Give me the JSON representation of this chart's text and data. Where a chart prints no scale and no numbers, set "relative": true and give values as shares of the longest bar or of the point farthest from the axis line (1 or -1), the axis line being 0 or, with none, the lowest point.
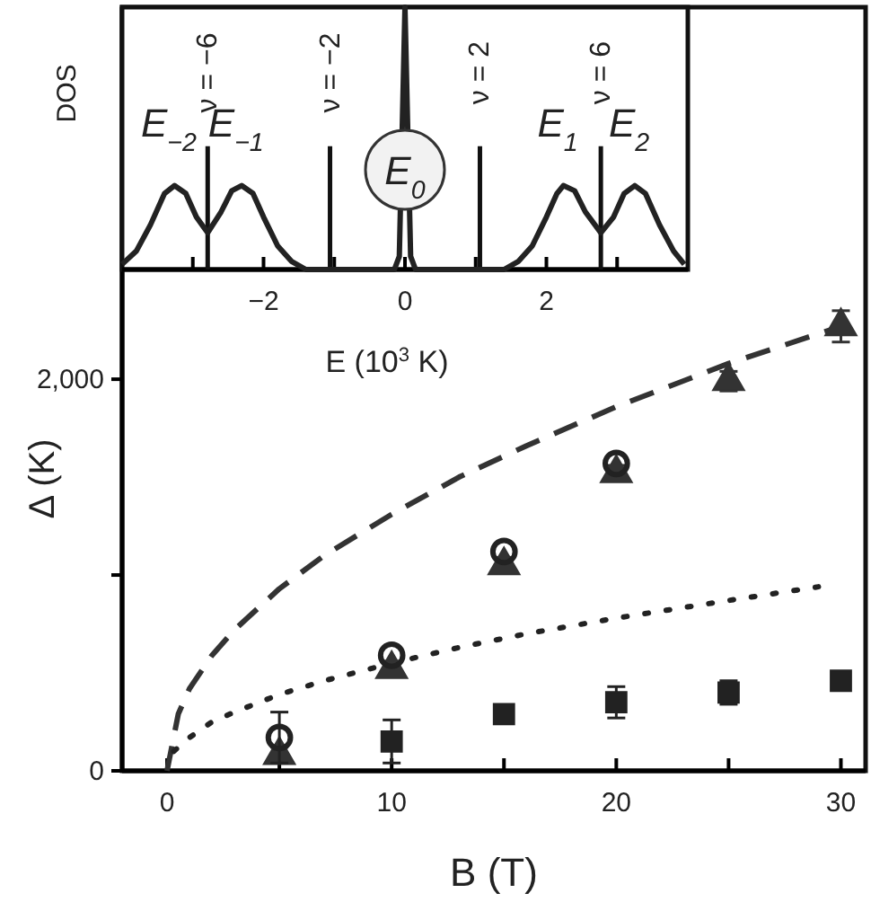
{
  "chart_data": [
    {
      "type": "scatter",
      "xlabel": "B (T)",
      "ylabel": "Δ (K)",
      "xlim": [
        -2,
        31.1
      ],
      "ylim": [
        0,
        3900
      ],
      "xticks": [
        0,
        {
          "value": 5,
          "label": null
        },
        10,
        {
          "value": 15,
          "label": null
        },
        20,
        {
          "value": 25,
          "label": null
        },
        30
      ],
      "yticks": [
        0,
        {
          "value": 1000,
          "label": null
        },
        {
          "value": 2000,
          "label": "2,000"
        }
      ],
      "series": [
        {
          "type": "line",
          "line_style": "dashed",
          "color": "#333333",
          "x": [
            0,
            0.5,
            1,
            2,
            3,
            5,
            7,
            10,
            13,
            16,
            20,
            25,
            30
          ],
          "values": [
            0,
            290,
            420,
            590,
            720,
            930,
            1100,
            1310,
            1500,
            1660,
            1860,
            2080,
            2270
          ]
        },
        {
          "type": "line",
          "line_style": "dotted",
          "color": "#222222",
          "x": [
            0.3,
            1,
            2,
            3,
            5,
            7,
            10,
            13,
            16,
            20,
            25,
            29
          ],
          "values": [
            100,
            170,
            250,
            300,
            390,
            460,
            550,
            630,
            700,
            780,
            870,
            940
          ]
        },
        {
          "marker": "triangle",
          "color": "#333333",
          "x": [
            5,
            10,
            15,
            20,
            25,
            30
          ],
          "values": [
            80,
            520,
            1050,
            1520,
            1990,
            2270
          ],
          "errors": [
            40,
            40,
            40,
            40,
            50,
            80
          ]
        },
        {
          "marker": "circle",
          "color": "#222222",
          "x": [
            5,
            10,
            15,
            20
          ],
          "values": [
            170,
            590,
            1120,
            1570
          ],
          "errors": [
            130,
            null,
            null,
            null
          ]
        },
        {
          "marker": "square",
          "color": "#222222",
          "x": [
            10,
            15,
            20,
            25,
            30
          ],
          "values": [
            150,
            290,
            350,
            400,
            460
          ],
          "errors": [
            110,
            40,
            80,
            60,
            20
          ]
        }
      ]
    },
    {
      "type": "line",
      "relative": true,
      "xlabel": "E (10$^{3}$ K)",
      "ylabel": "DOS",
      "xlim": [
        -4,
        4
      ],
      "xticks": [
        {
          "value": -3,
          "label": null
        },
        {
          "value": -2,
          "label": "−2"
        },
        {
          "value": -1,
          "label": null
        },
        0,
        {
          "value": 1,
          "label": null
        },
        2,
        {
          "value": 3,
          "label": null
        }
      ],
      "series": [
        {
          "color": "#222222",
          "x": [
            -4,
            -3.8,
            -3.6,
            -3.4,
            -3.26,
            -3.1,
            -2.95,
            -2.79,
            -2.6,
            -2.45,
            -2.31,
            -2.15,
            -2,
            -1.8,
            -1.6,
            -1.4,
            -0.15,
            -0.08,
            0,
            0.08,
            0.15,
            1.4,
            1.6,
            1.8,
            2,
            2.15,
            2.24,
            2.4,
            2.55,
            2.77,
            2.95,
            3.1,
            3.25,
            3.4,
            3.6,
            3.8,
            3.95
          ],
          "values": [
            0.02,
            0.07,
            0.17,
            0.29,
            0.32,
            0.29,
            0.2,
            0.14,
            0.22,
            0.3,
            0.32,
            0.29,
            0.2,
            0.09,
            0.03,
            0,
            0,
            0.05,
            1,
            0.05,
            0,
            0,
            0.03,
            0.09,
            0.2,
            0.29,
            0.32,
            0.3,
            0.22,
            0.14,
            0.2,
            0.29,
            0.32,
            0.29,
            0.17,
            0.07,
            0.02
          ]
        }
      ],
      "ref_lines": [
        {
          "axis": "x",
          "value": -2.79
        },
        {
          "axis": "x",
          "value": -1.06
        },
        {
          "axis": "x",
          "value": 1.06
        },
        {
          "axis": "x",
          "value": 2.77
        }
      ],
      "annotations": [
        "ν = −6",
        "ν = −2",
        "ν = 2",
        "ν = 6",
        "E$_{−2}$",
        "E$_{−1}$",
        "E$_{0}$",
        "E$_{1}$",
        "E$_{2}$"
      ]
    }
  ]
}
